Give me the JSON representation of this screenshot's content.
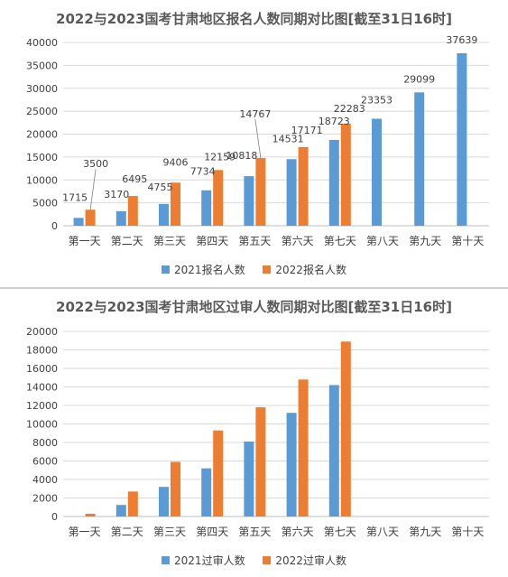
{
  "colors": {
    "s2021": "#5b9bd5",
    "s2022": "#ed7d31",
    "grid": "#d9d9d9",
    "axis": "#bfbfbf"
  },
  "chart_data": [
    {
      "type": "bar",
      "title": "2022与2023国考甘肃地区报名人数同期对比图[截至31日16时]",
      "categories": [
        "第一天",
        "第二天",
        "第三天",
        "第四天",
        "第五天",
        "第六天",
        "第七天",
        "第八天",
        "第九天",
        "第十天"
      ],
      "series": [
        {
          "name": "2021报名人数",
          "values": [
            1715,
            3170,
            4755,
            7734,
            10818,
            14531,
            18723,
            23353,
            29099,
            37639
          ]
        },
        {
          "name": "2022报名人数",
          "values": [
            3500,
            6495,
            9406,
            12159,
            14767,
            17171,
            22283,
            null,
            null,
            null
          ]
        }
      ],
      "ylim": [
        0,
        40000
      ],
      "yticks": [
        0,
        5000,
        10000,
        15000,
        20000,
        25000,
        30000,
        35000,
        40000
      ],
      "data_labels": true,
      "grid": true,
      "legend": "bottom"
    },
    {
      "type": "bar",
      "title": "2022与2023国考甘肃地区过审人数同期对比图[截至31日16时]",
      "categories": [
        "第一天",
        "第二天",
        "第三天",
        "第四天",
        "第五天",
        "第六天",
        "第七天",
        "第八天",
        "第九天",
        "第十天"
      ],
      "series": [
        {
          "name": "2021过审人数",
          "values": [
            0,
            1250,
            3200,
            5200,
            8100,
            11200,
            14200,
            null,
            null,
            null
          ]
        },
        {
          "name": "2022过审人数",
          "values": [
            300,
            2700,
            5900,
            9300,
            11800,
            14800,
            18900,
            null,
            null,
            null
          ]
        }
      ],
      "ylim": [
        0,
        20000
      ],
      "yticks": [
        0,
        2000,
        4000,
        6000,
        8000,
        10000,
        12000,
        14000,
        16000,
        18000,
        20000
      ],
      "data_labels": false,
      "grid": true,
      "legend": "bottom"
    }
  ]
}
